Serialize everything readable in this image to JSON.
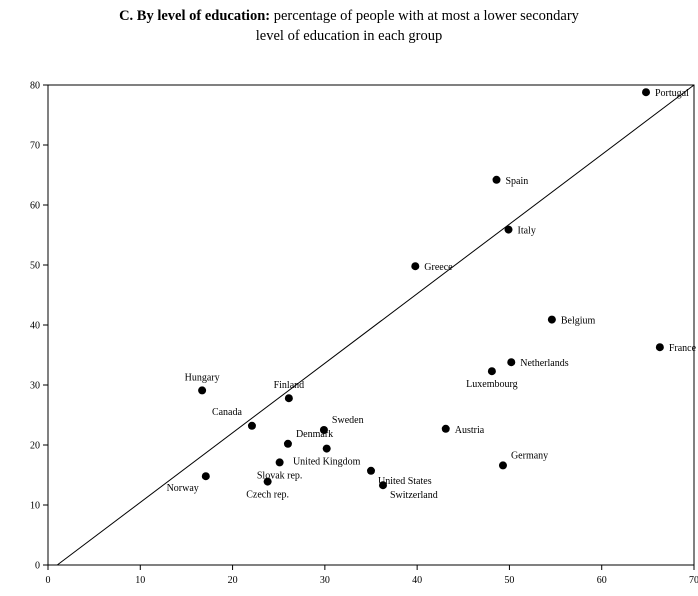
{
  "title": {
    "bold": "C. By level of education:",
    "line1_rest": "percentage of people with at most a lower secondary",
    "line2": "level of education in each group"
  },
  "chart_data": {
    "type": "scatter",
    "title": "C. By level of education: percentage of people with at most a lower secondary level of education in each group",
    "xlabel": "",
    "ylabel": "",
    "xlim": [
      0,
      70
    ],
    "ylim": [
      0,
      80
    ],
    "x_ticks": [
      0,
      10,
      20,
      30,
      40,
      50,
      60,
      70
    ],
    "y_ticks": [
      0,
      10,
      20,
      30,
      40,
      50,
      60,
      70,
      80
    ],
    "grid": false,
    "reference_line": {
      "from": [
        1,
        0
      ],
      "to": [
        70,
        80
      ],
      "label": ""
    },
    "points": [
      {
        "label": "Portugal",
        "x": 64.8,
        "y": 78.8,
        "label_pos": "right"
      },
      {
        "label": "Spain",
        "x": 48.6,
        "y": 64.2,
        "label_pos": "right"
      },
      {
        "label": "Italy",
        "x": 49.9,
        "y": 55.9,
        "label_pos": "right"
      },
      {
        "label": "Greece",
        "x": 39.8,
        "y": 49.8,
        "label_pos": "right"
      },
      {
        "label": "Belgium",
        "x": 54.6,
        "y": 40.9,
        "label_pos": "right"
      },
      {
        "label": "France",
        "x": 66.3,
        "y": 36.3,
        "label_pos": "right"
      },
      {
        "label": "Netherlands",
        "x": 50.2,
        "y": 33.8,
        "label_pos": "right"
      },
      {
        "label": "Luxembourg",
        "x": 48.1,
        "y": 32.3,
        "label_pos": "below"
      },
      {
        "label": "Hungary",
        "x": 16.7,
        "y": 29.1,
        "label_pos": "above"
      },
      {
        "label": "Finland",
        "x": 26.1,
        "y": 27.8,
        "label_pos": "above"
      },
      {
        "label": "Canada",
        "x": 22.1,
        "y": 23.2,
        "label_pos": "above-left"
      },
      {
        "label": "Austria",
        "x": 43.1,
        "y": 22.7,
        "label_pos": "right"
      },
      {
        "label": "Sweden",
        "x": 29.9,
        "y": 22.5,
        "label_pos": "above-right"
      },
      {
        "label": "Denmark",
        "x": 26.0,
        "y": 20.2,
        "label_pos": "above-right"
      },
      {
        "label": "United Kingdom",
        "x": 30.2,
        "y": 19.4,
        "label_pos": "below"
      },
      {
        "label": "Slovak rep.",
        "x": 25.1,
        "y": 17.1,
        "label_pos": "below"
      },
      {
        "label": "Germany",
        "x": 49.3,
        "y": 16.6,
        "label_pos": "above-right"
      },
      {
        "label": "United States",
        "x": 35.0,
        "y": 15.7,
        "label_pos": "below-right"
      },
      {
        "label": "Norway",
        "x": 17.1,
        "y": 14.8,
        "label_pos": "below-left"
      },
      {
        "label": "Czech rep.",
        "x": 23.8,
        "y": 13.9,
        "label_pos": "below"
      },
      {
        "label": "Switzerland",
        "x": 36.3,
        "y": 13.3,
        "label_pos": "below-right"
      }
    ]
  }
}
